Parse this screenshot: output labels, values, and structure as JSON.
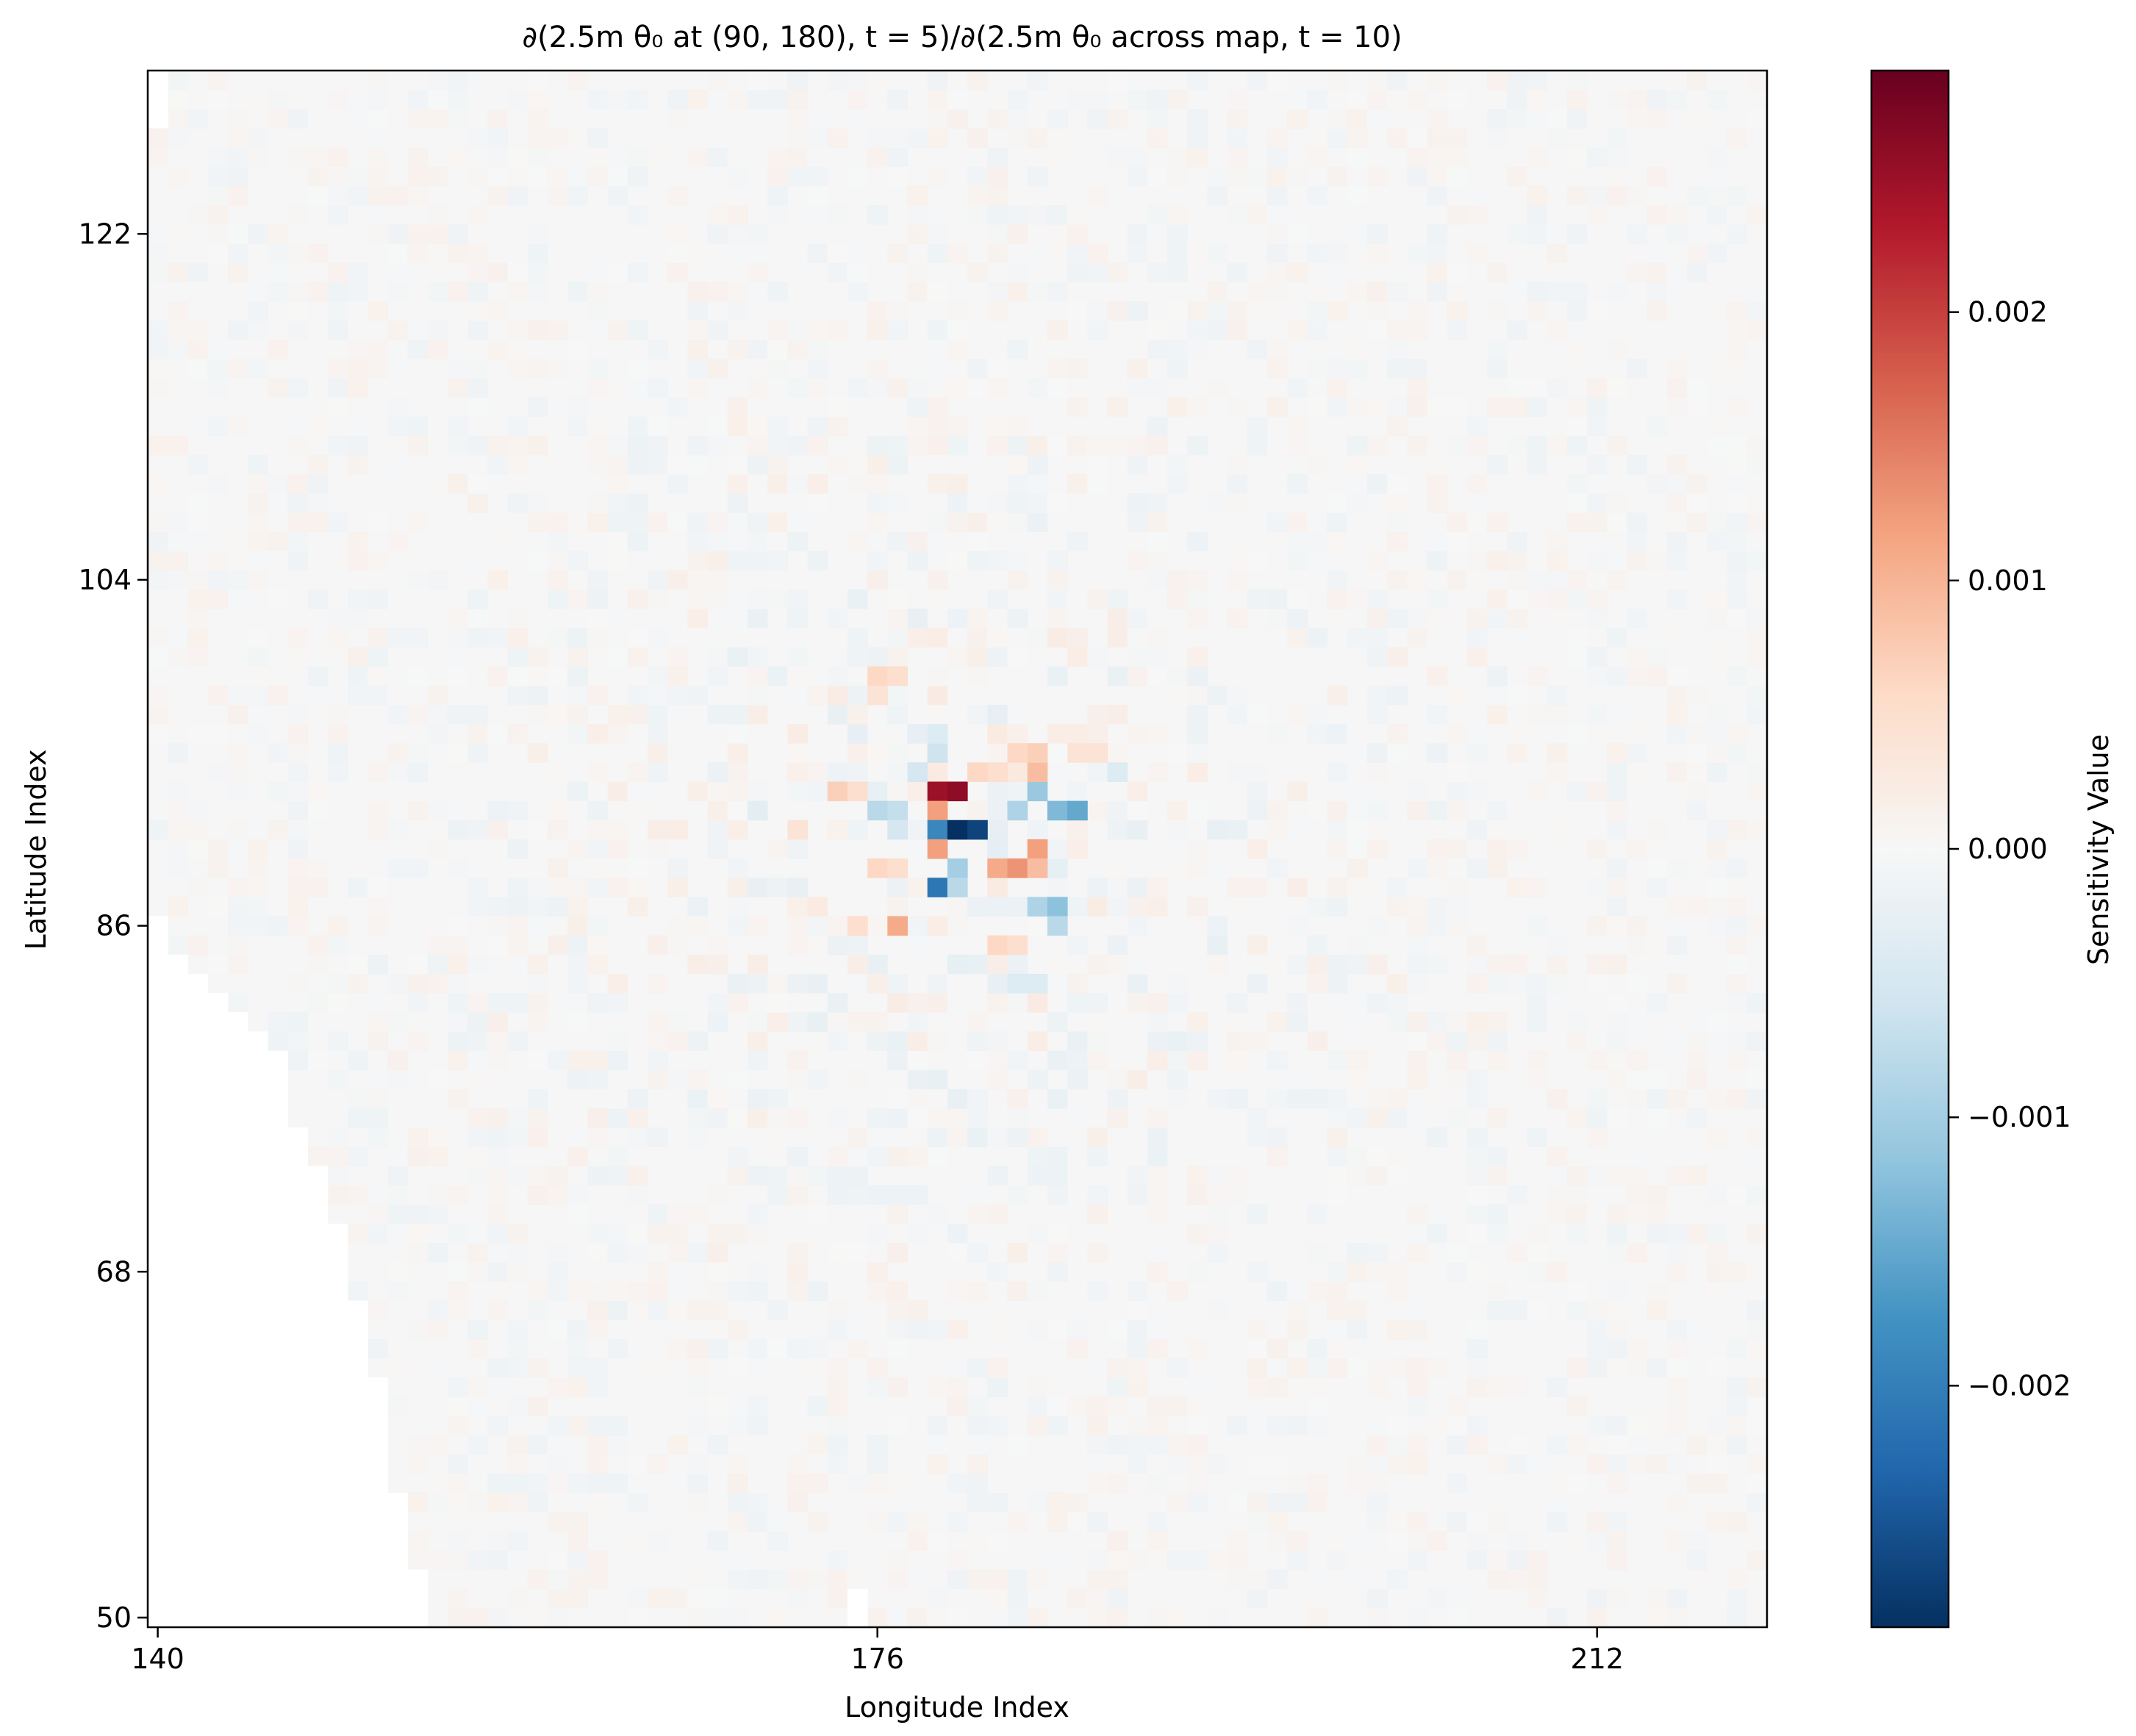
{
  "chart_data": {
    "type": "heatmap",
    "title": "∂(2.5m θ₀ at (90, 180), t = 5)/∂(2.5m θ₀ across map, t = 10)",
    "xlabel": "Longitude Index",
    "ylabel": "Latitude Index",
    "xlim": [
      139.5,
      220.5
    ],
    "ylim": [
      49.5,
      130.5
    ],
    "x_ticks": [
      "140",
      "176",
      "212"
    ],
    "y_ticks": [
      "50",
      "68",
      "86",
      "104",
      "122"
    ],
    "x_tick_values": [
      140,
      176,
      212
    ],
    "y_tick_values": [
      50,
      68,
      86,
      104,
      122
    ],
    "colormap": "RdBu_r",
    "colorbar": {
      "label": "Sensitivity Value",
      "range": [
        -0.0029,
        0.0029
      ],
      "ticks": [
        "0.002",
        "0.001",
        "0.000",
        "−0.001",
        "−0.002"
      ],
      "tick_values": [
        0.002,
        0.001,
        0.0,
        -0.001,
        -0.002
      ]
    },
    "grid": false,
    "masked_region": "white (NaN) cells along the left/lower-left edge around longitude 140–153, latitude 50–86, plus a small gap near longitude 175–176 at latitude 50–52",
    "cells": [
      {
        "lon": 179,
        "lat": 93,
        "value": 0.0025
      },
      {
        "lon": 180,
        "lat": 93,
        "value": 0.0026
      },
      {
        "lon": 179,
        "lat": 92,
        "value": 0.0012
      },
      {
        "lon": 179,
        "lat": 91,
        "value": -0.0019
      },
      {
        "lon": 180,
        "lat": 91,
        "value": -0.0029
      },
      {
        "lon": 181,
        "lat": 91,
        "value": -0.0027
      },
      {
        "lon": 179,
        "lat": 90,
        "value": 0.0012
      },
      {
        "lon": 180,
        "lat": 89,
        "value": -0.001
      },
      {
        "lon": 179,
        "lat": 88,
        "value": -0.0021
      },
      {
        "lon": 180,
        "lat": 88,
        "value": -0.0008
      },
      {
        "lon": 182,
        "lat": 89,
        "value": 0.0011
      },
      {
        "lon": 183,
        "lat": 89,
        "value": 0.0013
      },
      {
        "lon": 184,
        "lat": 90,
        "value": 0.0012
      },
      {
        "lon": 184,
        "lat": 89,
        "value": 0.0009
      },
      {
        "lon": 183,
        "lat": 92,
        "value": -0.0009
      },
      {
        "lon": 184,
        "lat": 93,
        "value": -0.0011
      },
      {
        "lon": 185,
        "lat": 92,
        "value": -0.0013
      },
      {
        "lon": 186,
        "lat": 92,
        "value": -0.0015
      },
      {
        "lon": 184,
        "lat": 87,
        "value": -0.0009
      },
      {
        "lon": 185,
        "lat": 87,
        "value": -0.0012
      },
      {
        "lon": 185,
        "lat": 86,
        "value": -0.0008
      },
      {
        "lon": 184,
        "lat": 94,
        "value": 0.0009
      },
      {
        "lon": 184,
        "lat": 95,
        "value": 0.0007
      },
      {
        "lon": 183,
        "lat": 95,
        "value": 0.0006
      },
      {
        "lon": 182,
        "lat": 94,
        "value": 0.0005
      },
      {
        "lon": 181,
        "lat": 94,
        "value": 0.0006
      },
      {
        "lon": 178,
        "lat": 94,
        "value": -0.0005
      },
      {
        "lon": 179,
        "lat": 95,
        "value": -0.0006
      },
      {
        "lon": 179,
        "lat": 96,
        "value": -0.0004
      },
      {
        "lon": 176,
        "lat": 92,
        "value": -0.0008
      },
      {
        "lon": 177,
        "lat": 92,
        "value": -0.0007
      },
      {
        "lon": 174,
        "lat": 93,
        "value": 0.0007
      },
      {
        "lon": 175,
        "lat": 93,
        "value": 0.0005
      },
      {
        "lon": 177,
        "lat": 91,
        "value": -0.0005
      },
      {
        "lon": 176,
        "lat": 89,
        "value": 0.0006
      },
      {
        "lon": 177,
        "lat": 89,
        "value": 0.0005
      },
      {
        "lon": 177,
        "lat": 86,
        "value": 0.0011
      },
      {
        "lon": 175,
        "lat": 86,
        "value": 0.0005
      },
      {
        "lon": 176,
        "lat": 99,
        "value": 0.0006
      },
      {
        "lon": 176,
        "lat": 98,
        "value": 0.0004
      },
      {
        "lon": 177,
        "lat": 99,
        "value": 0.0005
      },
      {
        "lon": 186,
        "lat": 95,
        "value": 0.0004
      },
      {
        "lon": 187,
        "lat": 95,
        "value": 0.0004
      },
      {
        "lon": 188,
        "lat": 94,
        "value": -0.0004
      },
      {
        "lon": 182,
        "lat": 85,
        "value": 0.0006
      },
      {
        "lon": 183,
        "lat": 85,
        "value": 0.0005
      },
      {
        "lon": 183,
        "lat": 83,
        "value": -0.0004
      },
      {
        "lon": 184,
        "lat": 83,
        "value": -0.0004
      },
      {
        "lon": 172,
        "lat": 91,
        "value": 0.0004
      },
      {
        "lon": 170,
        "lat": 92,
        "value": -0.0003
      }
    ]
  }
}
